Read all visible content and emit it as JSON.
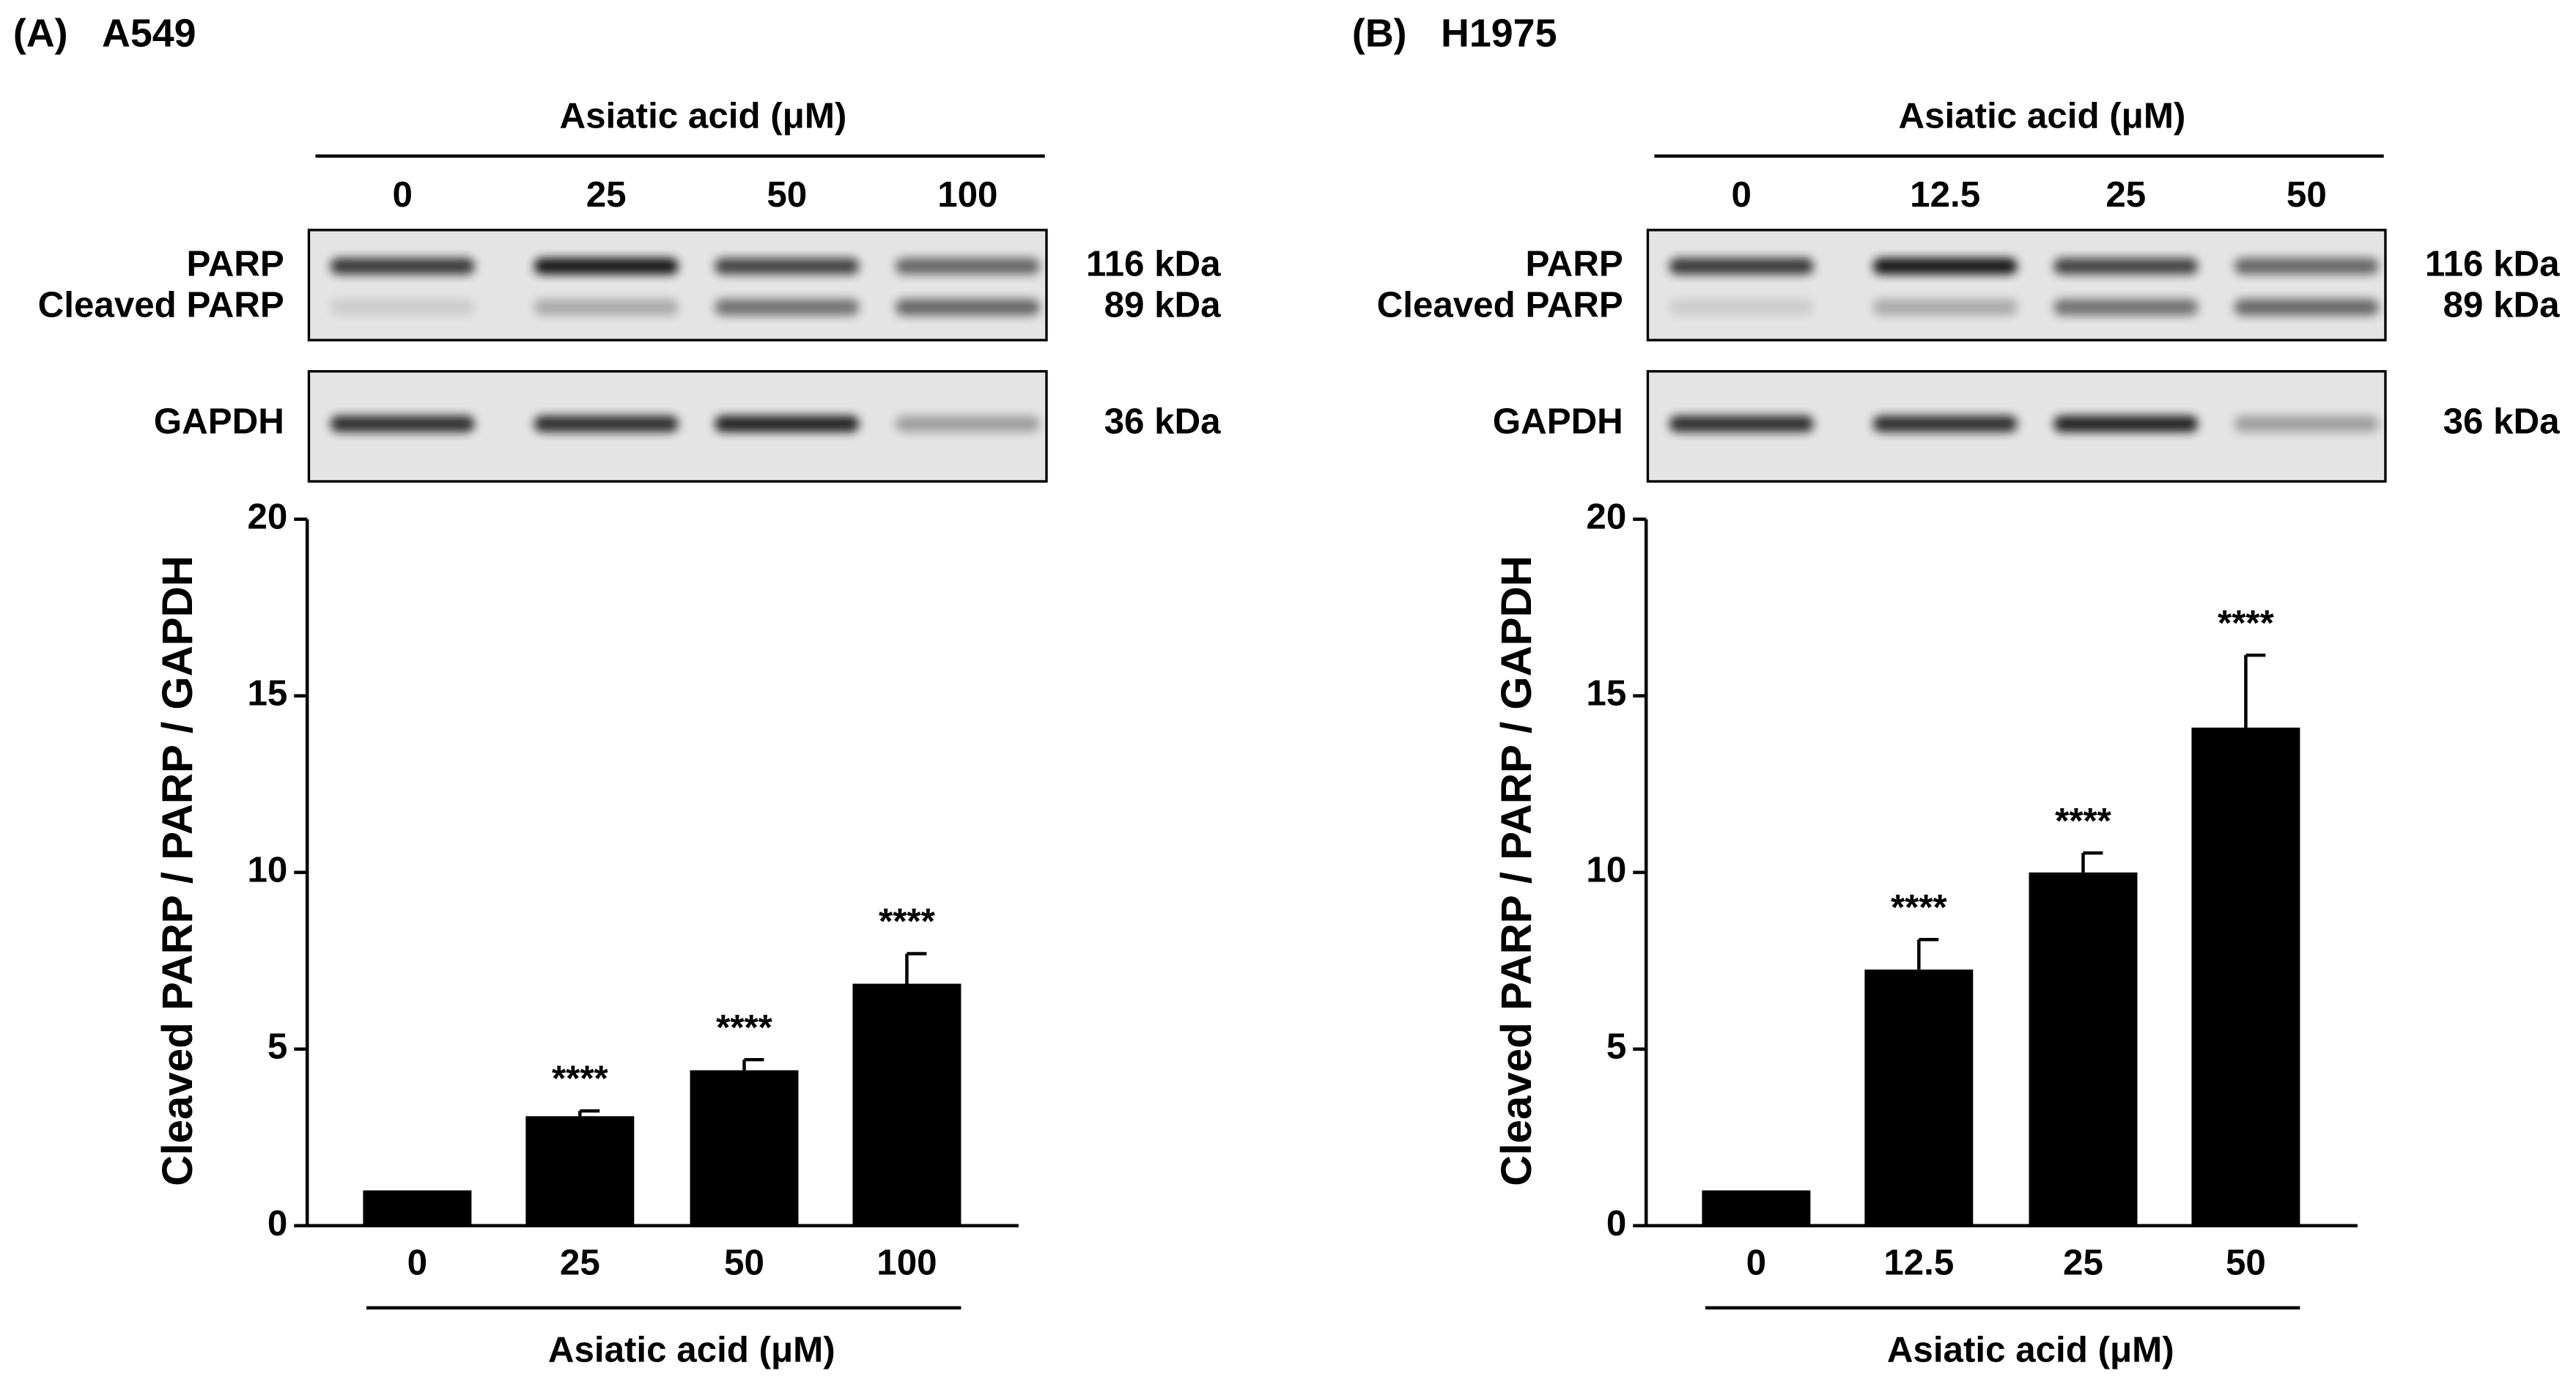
{
  "chart_data": [
    {
      "type": "bar",
      "panel": "(A)",
      "title": "A549",
      "blot": {
        "header": "Asiatic acid (μM)",
        "lanes": [
          "0",
          "25",
          "50",
          "100"
        ],
        "bands": [
          "PARP",
          "Cleaved PARP",
          "GAPDH"
        ],
        "sizes": [
          "116 kDa",
          "89 kDa",
          "36 kDa"
        ]
      },
      "categories": [
        "0",
        "25",
        "50",
        "100"
      ],
      "values": [
        1,
        3.1,
        4.4,
        6.85
      ],
      "errors": [
        0,
        0.15,
        0.3,
        0.85
      ],
      "significance": [
        null,
        "****",
        "****",
        "****"
      ],
      "color": "#000000",
      "xlabel": "Asiatic acid (μM)",
      "ylabel": "Cleaved PARP / PARP / GAPDH",
      "ylim": [
        0,
        20
      ],
      "yticks": [
        0,
        5,
        10,
        15,
        20
      ]
    },
    {
      "type": "bar",
      "panel": "(B)",
      "title": "H1975",
      "blot": {
        "header": "Asiatic acid (μM)",
        "lanes": [
          "0",
          "12.5",
          "25",
          "50"
        ],
        "bands": [
          "PARP",
          "Cleaved PARP",
          "GAPDH"
        ],
        "sizes": [
          "116 kDa",
          "89 kDa",
          "36 kDa"
        ]
      },
      "categories": [
        "0",
        "12.5",
        "25",
        "50"
      ],
      "values": [
        1,
        7.25,
        10,
        14.1
      ],
      "errors": [
        0,
        0.85,
        0.55,
        2.05
      ],
      "significance": [
        null,
        "****",
        "****",
        "****"
      ],
      "color": "#000000",
      "xlabel": "Asiatic acid (μM)",
      "ylabel": "Cleaved PARP / PARP / GAPDH",
      "ylim": [
        0,
        20
      ],
      "yticks": [
        0,
        5,
        10,
        15,
        20
      ]
    }
  ]
}
